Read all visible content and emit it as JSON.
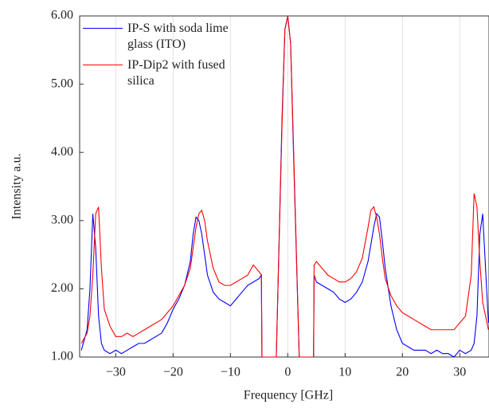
{
  "chart_data": {
    "type": "line",
    "xlabel": "Frequency [GHz]",
    "ylabel": "Intensity a.u.",
    "x": [
      -36,
      -35,
      -34.5,
      -34,
      -33.5,
      -33,
      -32.5,
      -32,
      -31,
      -30,
      -29,
      -28,
      -27,
      -26,
      -25,
      -24,
      -23,
      -22,
      -21,
      -20,
      -19,
      -18,
      -17,
      -16.5,
      -16,
      -15.5,
      -15,
      -14.5,
      -14,
      -13,
      -12,
      -11,
      -10,
      -9,
      -8,
      -7,
      -6,
      -5,
      -4.6,
      -4.5,
      -2,
      -1,
      -0.5,
      0,
      0.5,
      1,
      2,
      4.5,
      4.6,
      5,
      6,
      7,
      8,
      9,
      10,
      11,
      12,
      13,
      14,
      14.5,
      15,
      15.5,
      16,
      16.5,
      17,
      18,
      19,
      20,
      21,
      22,
      23,
      24,
      25,
      26,
      27,
      28,
      29,
      30,
      31,
      32,
      32.5,
      33,
      33.5,
      34,
      35
    ],
    "series": [
      {
        "name": "IP-S with soda lime glass (ITO)",
        "color": "#0000ff",
        "values": [
          1.1,
          1.4,
          2.0,
          3.1,
          2.6,
          1.6,
          1.2,
          1.1,
          1.05,
          1.1,
          1.05,
          1.1,
          1.15,
          1.2,
          1.2,
          1.25,
          1.3,
          1.35,
          1.5,
          1.7,
          1.85,
          2.05,
          2.4,
          2.8,
          3.05,
          3.0,
          2.8,
          2.5,
          2.2,
          1.95,
          1.85,
          1.8,
          1.75,
          1.85,
          1.95,
          2.05,
          2.1,
          2.15,
          2.2,
          1.0,
          1.0,
          4.5,
          5.8,
          6.0,
          5.6,
          4.0,
          1.0,
          1.0,
          2.2,
          2.1,
          2.05,
          2.0,
          1.95,
          1.85,
          1.8,
          1.85,
          1.95,
          2.1,
          2.4,
          2.65,
          2.9,
          3.1,
          3.05,
          2.7,
          2.3,
          1.75,
          1.4,
          1.2,
          1.15,
          1.1,
          1.1,
          1.1,
          1.05,
          1.1,
          1.05,
          1.05,
          1.0,
          1.1,
          1.05,
          1.1,
          1.2,
          1.6,
          2.8,
          3.1,
          1.5
        ]
      },
      {
        "name": "IP-Dip2 with fused silica",
        "color": "#ff0000",
        "values": [
          1.2,
          1.35,
          1.6,
          2.2,
          3.1,
          3.2,
          2.3,
          1.7,
          1.45,
          1.3,
          1.3,
          1.35,
          1.3,
          1.35,
          1.4,
          1.45,
          1.5,
          1.55,
          1.65,
          1.75,
          1.9,
          2.05,
          2.3,
          2.6,
          2.9,
          3.1,
          3.15,
          3.0,
          2.7,
          2.3,
          2.1,
          2.05,
          2.05,
          2.1,
          2.15,
          2.2,
          2.35,
          2.25,
          2.2,
          1.0,
          1.0,
          4.4,
          5.8,
          6.0,
          5.6,
          4.1,
          1.0,
          1.0,
          2.35,
          2.4,
          2.3,
          2.2,
          2.15,
          2.1,
          2.1,
          2.15,
          2.25,
          2.45,
          2.9,
          3.15,
          3.2,
          3.05,
          2.8,
          2.45,
          2.15,
          1.9,
          1.75,
          1.65,
          1.6,
          1.55,
          1.5,
          1.45,
          1.4,
          1.4,
          1.4,
          1.4,
          1.4,
          1.5,
          1.6,
          2.2,
          3.4,
          3.2,
          2.4,
          1.8,
          1.4
        ]
      }
    ],
    "xlim": [
      -36.3,
      35.1
    ],
    "ylim": [
      1,
      6
    ],
    "xticks": [
      {
        "value": -30,
        "label": "−30"
      },
      {
        "value": -20,
        "label": "−20"
      },
      {
        "value": -10,
        "label": "−10"
      },
      0,
      10,
      20,
      30
    ],
    "yticks": [
      {
        "value": 1,
        "label": "1.00"
      },
      {
        "value": 2,
        "label": "2.00"
      },
      {
        "value": 3,
        "label": "3.00"
      },
      {
        "value": 4,
        "label": "4.00"
      },
      {
        "value": 5,
        "label": "5.00"
      },
      {
        "value": 6,
        "label": "6.00"
      }
    ],
    "grid": "x",
    "legend": "upper left"
  }
}
